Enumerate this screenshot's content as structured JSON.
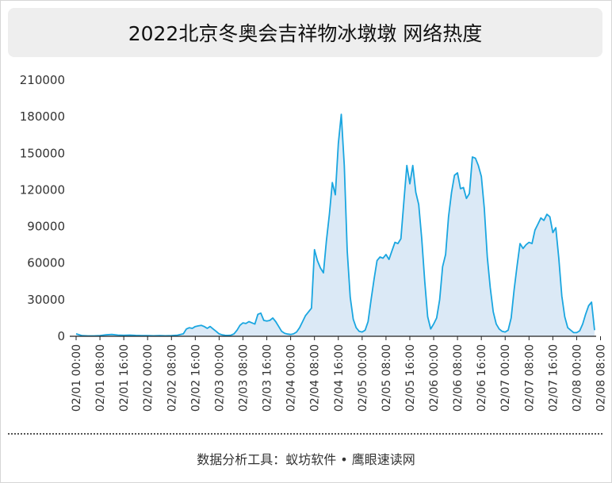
{
  "title": "2022北京冬奥会吉祥物冰墩墩 网络热度",
  "footer": "数据分析工具：蚁坊软件 • 鹰眼速读网",
  "colors": {
    "line": "#1aa6e0",
    "fill": "#dbe9f6",
    "axis": "#222222"
  },
  "chart_data": {
    "type": "area",
    "title": "2022北京冬奥会吉祥物冰墩墩 网络热度",
    "xlabel": "",
    "ylabel": "",
    "ylim": [
      0,
      210000
    ],
    "yticks": [
      0,
      30000,
      60000,
      90000,
      120000,
      150000,
      180000,
      210000
    ],
    "ytick_labels": [
      "0",
      "30000",
      "60000",
      "90000",
      "120000",
      "150000",
      "180000",
      "210000"
    ],
    "xtick_labels": [
      "02/01 00:00",
      "02/01 08:00",
      "02/01 16:00",
      "02/02 00:00",
      "02/02 08:00",
      "02/02 16:00",
      "02/03 00:00",
      "02/03 08:00",
      "02/03 16:00",
      "02/04 00:00",
      "02/04 08:00",
      "02/04 16:00",
      "02/05 00:00",
      "02/05 08:00",
      "02/05 16:00",
      "02/06 00:00",
      "02/06 08:00",
      "02/06 16:00",
      "02/07 00:00",
      "02/07 08:00",
      "02/07 16:00",
      "02/08 00:00",
      "02/08 08:00"
    ],
    "x_unit": "hours since 02/01 00:00",
    "grid": false,
    "legend": "none",
    "series": [
      {
        "name": "",
        "points": [
          [
            0,
            2000
          ],
          [
            2,
            500
          ],
          [
            4,
            300
          ],
          [
            6,
            300
          ],
          [
            8,
            600
          ],
          [
            10,
            1200
          ],
          [
            12,
            1500
          ],
          [
            14,
            1000
          ],
          [
            16,
            800
          ],
          [
            18,
            1000
          ],
          [
            20,
            700
          ],
          [
            22,
            600
          ],
          [
            24,
            500
          ],
          [
            26,
            400
          ],
          [
            28,
            500
          ],
          [
            30,
            400
          ],
          [
            32,
            600
          ],
          [
            34,
            900
          ],
          [
            36,
            2000
          ],
          [
            37,
            6000
          ],
          [
            38,
            7000
          ],
          [
            39,
            6500
          ],
          [
            40,
            8000
          ],
          [
            41,
            8500
          ],
          [
            42,
            9000
          ],
          [
            43,
            8000
          ],
          [
            44,
            6500
          ],
          [
            45,
            8000
          ],
          [
            46,
            6000
          ],
          [
            47,
            4000
          ],
          [
            48,
            2000
          ],
          [
            49,
            1200
          ],
          [
            50,
            800
          ],
          [
            51,
            700
          ],
          [
            52,
            900
          ],
          [
            53,
            2000
          ],
          [
            54,
            5000
          ],
          [
            55,
            9000
          ],
          [
            56,
            11000
          ],
          [
            57,
            10500
          ],
          [
            58,
            12000
          ],
          [
            59,
            11000
          ],
          [
            60,
            10000
          ],
          [
            61,
            18000
          ],
          [
            62,
            19000
          ],
          [
            63,
            13000
          ],
          [
            64,
            12500
          ],
          [
            65,
            13000
          ],
          [
            66,
            15000
          ],
          [
            67,
            12000
          ],
          [
            68,
            8000
          ],
          [
            69,
            4000
          ],
          [
            70,
            2500
          ],
          [
            71,
            1800
          ],
          [
            72,
            1500
          ],
          [
            73,
            2000
          ],
          [
            74,
            3500
          ],
          [
            75,
            7000
          ],
          [
            76,
            12000
          ],
          [
            77,
            17000
          ],
          [
            78,
            20000
          ],
          [
            79,
            23000
          ],
          [
            80,
            71000
          ],
          [
            81,
            62000
          ],
          [
            82,
            56000
          ],
          [
            83,
            52000
          ],
          [
            84,
            78000
          ],
          [
            85,
            100000
          ],
          [
            86,
            126000
          ],
          [
            87,
            116000
          ],
          [
            88,
            158000
          ],
          [
            89,
            182000
          ],
          [
            90,
            140000
          ],
          [
            91,
            70000
          ],
          [
            92,
            32000
          ],
          [
            93,
            14000
          ],
          [
            94,
            7000
          ],
          [
            95,
            4000
          ],
          [
            96,
            3500
          ],
          [
            97,
            5000
          ],
          [
            98,
            12000
          ],
          [
            99,
            30000
          ],
          [
            100,
            47000
          ],
          [
            101,
            62000
          ],
          [
            102,
            65000
          ],
          [
            103,
            64000
          ],
          [
            104,
            67000
          ],
          [
            105,
            63000
          ],
          [
            106,
            70000
          ],
          [
            107,
            77000
          ],
          [
            108,
            76000
          ],
          [
            109,
            80000
          ],
          [
            110,
            110000
          ],
          [
            111,
            140000
          ],
          [
            112,
            125000
          ],
          [
            113,
            140000
          ],
          [
            114,
            118000
          ],
          [
            115,
            108000
          ],
          [
            116,
            80000
          ],
          [
            117,
            45000
          ],
          [
            118,
            16000
          ],
          [
            119,
            6000
          ],
          [
            120,
            10000
          ],
          [
            121,
            15000
          ],
          [
            122,
            30000
          ],
          [
            123,
            57000
          ],
          [
            124,
            67000
          ],
          [
            125,
            98000
          ],
          [
            126,
            118000
          ],
          [
            127,
            132000
          ],
          [
            128,
            134000
          ],
          [
            129,
            121000
          ],
          [
            130,
            122000
          ],
          [
            131,
            113000
          ],
          [
            132,
            117000
          ],
          [
            133,
            147000
          ],
          [
            134,
            146000
          ],
          [
            135,
            140000
          ],
          [
            136,
            131000
          ],
          [
            137,
            105000
          ],
          [
            138,
            65000
          ],
          [
            139,
            40000
          ],
          [
            140,
            20000
          ],
          [
            141,
            10000
          ],
          [
            142,
            6000
          ],
          [
            143,
            4000
          ],
          [
            144,
            3500
          ],
          [
            145,
            5000
          ],
          [
            146,
            15000
          ],
          [
            147,
            38000
          ],
          [
            148,
            58000
          ],
          [
            149,
            76000
          ],
          [
            150,
            72000
          ],
          [
            151,
            75000
          ],
          [
            152,
            77000
          ],
          [
            153,
            76000
          ],
          [
            154,
            87000
          ],
          [
            155,
            92000
          ],
          [
            156,
            97000
          ],
          [
            157,
            95000
          ],
          [
            158,
            100000
          ],
          [
            159,
            98000
          ],
          [
            160,
            85000
          ],
          [
            161,
            89000
          ],
          [
            162,
            64000
          ],
          [
            163,
            33000
          ],
          [
            164,
            16000
          ],
          [
            165,
            7000
          ],
          [
            166,
            5000
          ],
          [
            167,
            3000
          ],
          [
            168,
            3000
          ],
          [
            169,
            4500
          ],
          [
            170,
            10000
          ],
          [
            171,
            18000
          ],
          [
            172,
            25000
          ],
          [
            173,
            28000
          ],
          [
            174,
            5000
          ]
        ]
      }
    ]
  }
}
